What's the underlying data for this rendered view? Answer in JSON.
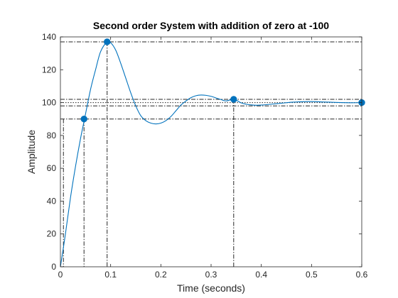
{
  "chart_data": {
    "type": "line",
    "title": "Second order System with addition of zero at -100",
    "xlabel": "Time (seconds)",
    "ylabel": "Amplitude",
    "xlim": [
      0,
      0.6
    ],
    "ylim": [
      0,
      140
    ],
    "x_ticks": [
      "0",
      "0.1",
      "0.2",
      "0.3",
      "0.4",
      "0.5",
      "0.6"
    ],
    "y_ticks": [
      "0",
      "20",
      "40",
      "60",
      "80",
      "100",
      "120",
      "140"
    ],
    "grid": false,
    "series": [
      {
        "color": "#0072BD",
        "x": [
          0,
          0.01,
          0.02,
          0.03,
          0.04,
          0.048,
          0.06,
          0.07,
          0.08,
          0.093,
          0.1,
          0.11,
          0.12,
          0.13,
          0.14,
          0.15,
          0.16,
          0.17,
          0.18,
          0.19,
          0.2,
          0.21,
          0.22,
          0.23,
          0.24,
          0.25,
          0.26,
          0.27,
          0.28,
          0.29,
          0.3,
          0.31,
          0.32,
          0.33,
          0.345,
          0.36,
          0.37,
          0.38,
          0.39,
          0.4,
          0.42,
          0.44,
          0.46,
          0.48,
          0.5,
          0.52,
          0.54,
          0.56,
          0.58,
          0.6
        ],
        "y": [
          0,
          20,
          42,
          61,
          78,
          90,
          108,
          120,
          131,
          137,
          136.5,
          132,
          124,
          115,
          106,
          98,
          92,
          89,
          87.5,
          87,
          87.5,
          89,
          91.5,
          95,
          98.5,
          101,
          103,
          104.2,
          104.6,
          104.4,
          103.8,
          102.8,
          101.8,
          101,
          102,
          99.8,
          99,
          98.6,
          98.4,
          98.5,
          99,
          99.6,
          100.2,
          100.5,
          100.6,
          100.4,
          100.2,
          100.0,
          99.9,
          100
        ]
      }
    ],
    "markers": [
      {
        "x": 0.047,
        "y": 90
      },
      {
        "x": 0.093,
        "y": 137
      },
      {
        "x": 0.345,
        "y": 102
      },
      {
        "x": 0.6,
        "y": 100
      }
    ],
    "reference_lines": {
      "horizontal_dashdot": [
        137,
        102,
        98,
        90
      ],
      "horizontal_dotted": [
        100
      ],
      "vertical_dashdot": [
        0.006,
        0.047,
        0.093,
        0.345
      ]
    }
  }
}
